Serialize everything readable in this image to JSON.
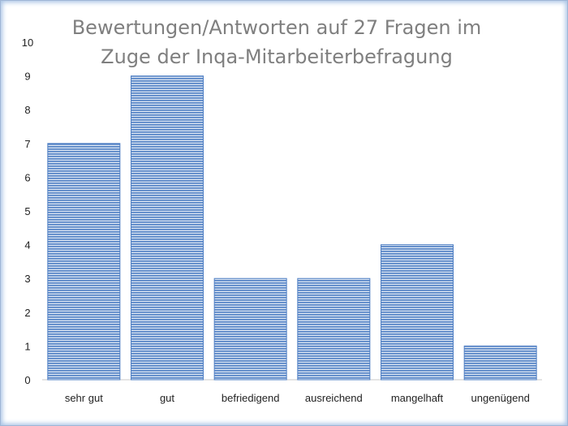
{
  "chart_data": {
    "type": "bar",
    "title_lines": [
      "Bewertungen/Antworten auf 27 Fragen im",
      "Zuge der Inqa-Mitarbeiterbefragung"
    ],
    "categories": [
      "sehr gut",
      "gut",
      "befriedigend",
      "ausreichend",
      "mangelhaft",
      "ungenügend"
    ],
    "values": [
      7,
      9,
      3,
      3,
      4,
      1
    ],
    "yticks": [
      "0",
      "1",
      "2",
      "3",
      "4",
      "5",
      "6",
      "7",
      "8",
      "9",
      "10"
    ],
    "ylim": [
      0,
      10
    ],
    "grid": false,
    "legend": "none",
    "bar_color": "#4f7fc4",
    "bar_stripe_color": "#dbe5f3"
  }
}
